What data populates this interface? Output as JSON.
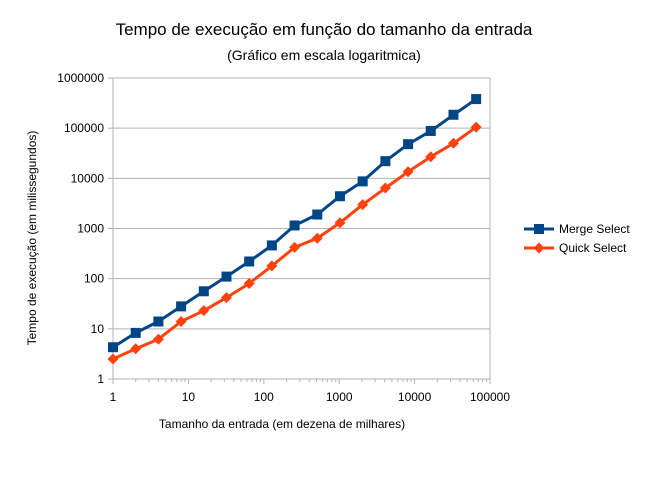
{
  "chart_data": {
    "type": "line",
    "title": "Tempo de execução em função do tamanho da entrada",
    "subtitle": "(Gráfico em escala logaritmica)",
    "xlabel": "Tamanho da entrada (em dezena de milhares)",
    "ylabel": "Tempo de execução (em milissegundos)",
    "x_scale": "log",
    "y_scale": "log",
    "xlim": [
      1,
      100000
    ],
    "ylim": [
      1,
      1000000
    ],
    "x_ticks": [
      "1",
      "10",
      "100",
      "1000",
      "10000",
      "100000"
    ],
    "y_ticks": [
      "1",
      "10",
      "100",
      "1000",
      "10000",
      "100000",
      "1000000"
    ],
    "grid": true,
    "legend_position": "right",
    "x": [
      1,
      2,
      4,
      8,
      16,
      32,
      64,
      128,
      256,
      512,
      1024,
      2048,
      4096,
      8192,
      16384,
      32768,
      65536
    ],
    "series": [
      {
        "name": "Merge Select",
        "color": "#004586",
        "marker": "square",
        "values": [
          4.3,
          8.3,
          14,
          28,
          56,
          110,
          220,
          460,
          1150,
          1900,
          4400,
          8700,
          22000,
          48000,
          88000,
          185000,
          380000
        ]
      },
      {
        "name": "Quick Select",
        "color": "#ff420e",
        "marker": "diamond",
        "values": [
          2.5,
          4,
          6.2,
          14,
          23,
          42,
          80,
          180,
          420,
          640,
          1300,
          3000,
          6400,
          13500,
          27000,
          50000,
          105000
        ]
      }
    ]
  }
}
